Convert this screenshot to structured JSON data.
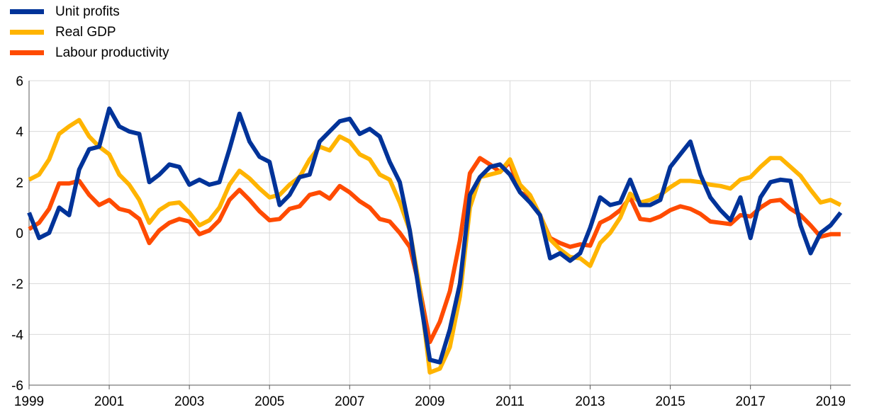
{
  "chart_data": {
    "type": "line",
    "title": "",
    "xlabel": "",
    "ylabel": "",
    "ylim": [
      -6,
      6
    ],
    "yticks": [
      "6",
      "4",
      "2",
      "0",
      "-2",
      "-4",
      "-6"
    ],
    "xticks": [
      "1999",
      "2001",
      "2003",
      "2005",
      "2007",
      "2009",
      "2011",
      "2013",
      "2015",
      "2017",
      "2019"
    ],
    "x_start": 1999.0,
    "x_end": 2019.5,
    "grid": "horizontal",
    "legend_position": "top-left",
    "series": [
      {
        "name": "Unit profits",
        "color": "#003399",
        "points": [
          [
            1999.0,
            0.8
          ],
          [
            1999.25,
            -0.2
          ],
          [
            1999.5,
            0.0
          ],
          [
            1999.75,
            1.0
          ],
          [
            2000.0,
            0.7
          ],
          [
            2000.25,
            2.5
          ],
          [
            2000.5,
            3.3
          ],
          [
            2000.75,
            3.4
          ],
          [
            2001.0,
            4.9
          ],
          [
            2001.25,
            4.2
          ],
          [
            2001.5,
            4.0
          ],
          [
            2001.75,
            3.9
          ],
          [
            2002.0,
            2.0
          ],
          [
            2002.25,
            2.3
          ],
          [
            2002.5,
            2.7
          ],
          [
            2002.75,
            2.6
          ],
          [
            2003.0,
            1.9
          ],
          [
            2003.25,
            2.1
          ],
          [
            2003.5,
            1.9
          ],
          [
            2003.75,
            2.0
          ],
          [
            2004.0,
            3.3
          ],
          [
            2004.25,
            4.7
          ],
          [
            2004.5,
            3.6
          ],
          [
            2004.75,
            3.0
          ],
          [
            2005.0,
            2.8
          ],
          [
            2005.25,
            1.1
          ],
          [
            2005.5,
            1.5
          ],
          [
            2005.75,
            2.2
          ],
          [
            2006.0,
            2.3
          ],
          [
            2006.25,
            3.6
          ],
          [
            2006.5,
            4.0
          ],
          [
            2006.75,
            4.4
          ],
          [
            2007.0,
            4.5
          ],
          [
            2007.25,
            3.9
          ],
          [
            2007.5,
            4.1
          ],
          [
            2007.75,
            3.8
          ],
          [
            2008.0,
            2.8
          ],
          [
            2008.25,
            2.0
          ],
          [
            2008.5,
            0.1
          ],
          [
            2008.75,
            -2.5
          ],
          [
            2009.0,
            -5.0
          ],
          [
            2009.25,
            -5.1
          ],
          [
            2009.5,
            -3.8
          ],
          [
            2009.75,
            -2.0
          ],
          [
            2010.0,
            1.5
          ],
          [
            2010.25,
            2.2
          ],
          [
            2010.5,
            2.6
          ],
          [
            2010.75,
            2.7
          ],
          [
            2011.0,
            2.3
          ],
          [
            2011.25,
            1.6
          ],
          [
            2011.5,
            1.2
          ],
          [
            2011.75,
            0.7
          ],
          [
            2012.0,
            -1.0
          ],
          [
            2012.25,
            -0.8
          ],
          [
            2012.5,
            -1.1
          ],
          [
            2012.75,
            -0.8
          ],
          [
            2013.0,
            0.2
          ],
          [
            2013.25,
            1.4
          ],
          [
            2013.5,
            1.1
          ],
          [
            2013.75,
            1.2
          ],
          [
            2014.0,
            2.1
          ],
          [
            2014.25,
            1.1
          ],
          [
            2014.5,
            1.1
          ],
          [
            2014.75,
            1.3
          ],
          [
            2015.0,
            2.6
          ],
          [
            2015.25,
            3.1
          ],
          [
            2015.5,
            3.6
          ],
          [
            2015.75,
            2.3
          ],
          [
            2016.0,
            1.4
          ],
          [
            2016.25,
            0.9
          ],
          [
            2016.5,
            0.5
          ],
          [
            2016.75,
            1.4
          ],
          [
            2017.0,
            -0.2
          ],
          [
            2017.25,
            1.4
          ],
          [
            2017.5,
            2.0
          ],
          [
            2017.75,
            2.1
          ],
          [
            2018.0,
            2.05
          ],
          [
            2018.25,
            0.3
          ],
          [
            2018.5,
            -0.8
          ],
          [
            2018.75,
            0.0
          ],
          [
            2019.0,
            0.3
          ],
          [
            2019.25,
            0.8
          ]
        ]
      },
      {
        "name": "Real GDP",
        "color": "#FFB400",
        "points": [
          [
            1999.0,
            2.1
          ],
          [
            1999.25,
            2.3
          ],
          [
            1999.5,
            2.9
          ],
          [
            1999.75,
            3.9
          ],
          [
            2000.0,
            4.2
          ],
          [
            2000.25,
            4.45
          ],
          [
            2000.5,
            3.8
          ],
          [
            2000.75,
            3.4
          ],
          [
            2001.0,
            3.1
          ],
          [
            2001.25,
            2.3
          ],
          [
            2001.5,
            1.9
          ],
          [
            2001.75,
            1.3
          ],
          [
            2002.0,
            0.4
          ],
          [
            2002.25,
            0.9
          ],
          [
            2002.5,
            1.15
          ],
          [
            2002.75,
            1.2
          ],
          [
            2003.0,
            0.8
          ],
          [
            2003.25,
            0.3
          ],
          [
            2003.5,
            0.5
          ],
          [
            2003.75,
            1.0
          ],
          [
            2004.0,
            1.9
          ],
          [
            2004.25,
            2.45
          ],
          [
            2004.5,
            2.15
          ],
          [
            2004.75,
            1.75
          ],
          [
            2005.0,
            1.4
          ],
          [
            2005.25,
            1.5
          ],
          [
            2005.5,
            1.9
          ],
          [
            2005.75,
            2.2
          ],
          [
            2006.0,
            2.9
          ],
          [
            2006.25,
            3.4
          ],
          [
            2006.5,
            3.25
          ],
          [
            2006.75,
            3.8
          ],
          [
            2007.0,
            3.6
          ],
          [
            2007.25,
            3.1
          ],
          [
            2007.5,
            2.9
          ],
          [
            2007.75,
            2.3
          ],
          [
            2008.0,
            2.1
          ],
          [
            2008.25,
            1.2
          ],
          [
            2008.5,
            0.1
          ],
          [
            2008.75,
            -2.2
          ],
          [
            2009.0,
            -5.5
          ],
          [
            2009.25,
            -5.35
          ],
          [
            2009.5,
            -4.5
          ],
          [
            2009.75,
            -2.5
          ],
          [
            2010.0,
            1.0
          ],
          [
            2010.25,
            2.2
          ],
          [
            2010.5,
            2.3
          ],
          [
            2010.75,
            2.4
          ],
          [
            2011.0,
            2.9
          ],
          [
            2011.25,
            1.9
          ],
          [
            2011.5,
            1.5
          ],
          [
            2011.75,
            0.7
          ],
          [
            2012.0,
            -0.25
          ],
          [
            2012.25,
            -0.65
          ],
          [
            2012.5,
            -0.95
          ],
          [
            2012.75,
            -1.0
          ],
          [
            2013.0,
            -1.3
          ],
          [
            2013.25,
            -0.4
          ],
          [
            2013.5,
            0.0
          ],
          [
            2013.75,
            0.6
          ],
          [
            2014.0,
            1.55
          ],
          [
            2014.25,
            1.2
          ],
          [
            2014.5,
            1.3
          ],
          [
            2014.75,
            1.5
          ],
          [
            2015.0,
            1.8
          ],
          [
            2015.25,
            2.05
          ],
          [
            2015.5,
            2.05
          ],
          [
            2015.75,
            2.0
          ],
          [
            2016.0,
            1.9
          ],
          [
            2016.25,
            1.85
          ],
          [
            2016.5,
            1.75
          ],
          [
            2016.75,
            2.1
          ],
          [
            2017.0,
            2.2
          ],
          [
            2017.25,
            2.6
          ],
          [
            2017.5,
            2.95
          ],
          [
            2017.75,
            2.95
          ],
          [
            2018.0,
            2.6
          ],
          [
            2018.25,
            2.25
          ],
          [
            2018.5,
            1.7
          ],
          [
            2018.75,
            1.2
          ],
          [
            2019.0,
            1.3
          ],
          [
            2019.25,
            1.1
          ]
        ]
      },
      {
        "name": "Labour productivity",
        "color": "#FF4B00",
        "points": [
          [
            1999.0,
            0.15
          ],
          [
            1999.25,
            0.4
          ],
          [
            1999.5,
            0.95
          ],
          [
            1999.75,
            1.95
          ],
          [
            2000.0,
            1.95
          ],
          [
            2000.25,
            2.05
          ],
          [
            2000.5,
            1.5
          ],
          [
            2000.75,
            1.1
          ],
          [
            2001.0,
            1.3
          ],
          [
            2001.25,
            0.95
          ],
          [
            2001.5,
            0.85
          ],
          [
            2001.75,
            0.55
          ],
          [
            2002.0,
            -0.4
          ],
          [
            2002.25,
            0.1
          ],
          [
            2002.5,
            0.4
          ],
          [
            2002.75,
            0.55
          ],
          [
            2003.0,
            0.45
          ],
          [
            2003.25,
            -0.05
          ],
          [
            2003.5,
            0.1
          ],
          [
            2003.75,
            0.5
          ],
          [
            2004.0,
            1.3
          ],
          [
            2004.25,
            1.7
          ],
          [
            2004.5,
            1.3
          ],
          [
            2004.75,
            0.85
          ],
          [
            2005.0,
            0.5
          ],
          [
            2005.25,
            0.55
          ],
          [
            2005.5,
            0.95
          ],
          [
            2005.75,
            1.05
          ],
          [
            2006.0,
            1.5
          ],
          [
            2006.25,
            1.6
          ],
          [
            2006.5,
            1.35
          ],
          [
            2006.75,
            1.85
          ],
          [
            2007.0,
            1.6
          ],
          [
            2007.25,
            1.25
          ],
          [
            2007.5,
            1.0
          ],
          [
            2007.75,
            0.55
          ],
          [
            2008.0,
            0.45
          ],
          [
            2008.25,
            0.0
          ],
          [
            2008.5,
            -0.55
          ],
          [
            2008.75,
            -2.2
          ],
          [
            2009.0,
            -4.3
          ],
          [
            2009.25,
            -3.5
          ],
          [
            2009.5,
            -2.3
          ],
          [
            2009.75,
            -0.3
          ],
          [
            2010.0,
            2.35
          ],
          [
            2010.25,
            2.95
          ],
          [
            2010.5,
            2.7
          ],
          [
            2010.75,
            2.4
          ],
          [
            2011.0,
            2.8
          ],
          [
            2011.25,
            1.6
          ],
          [
            2011.5,
            1.4
          ],
          [
            2011.75,
            0.7
          ],
          [
            2012.0,
            -0.2
          ],
          [
            2012.25,
            -0.4
          ],
          [
            2012.5,
            -0.55
          ],
          [
            2012.75,
            -0.45
          ],
          [
            2013.0,
            -0.5
          ],
          [
            2013.25,
            0.4
          ],
          [
            2013.5,
            0.6
          ],
          [
            2013.75,
            0.9
          ],
          [
            2014.0,
            1.4
          ],
          [
            2014.25,
            0.55
          ],
          [
            2014.5,
            0.5
          ],
          [
            2014.75,
            0.65
          ],
          [
            2015.0,
            0.9
          ],
          [
            2015.25,
            1.05
          ],
          [
            2015.5,
            0.95
          ],
          [
            2015.75,
            0.75
          ],
          [
            2016.0,
            0.45
          ],
          [
            2016.25,
            0.4
          ],
          [
            2016.5,
            0.35
          ],
          [
            2016.75,
            0.7
          ],
          [
            2017.0,
            0.65
          ],
          [
            2017.25,
            1.0
          ],
          [
            2017.5,
            1.25
          ],
          [
            2017.75,
            1.3
          ],
          [
            2018.0,
            0.95
          ],
          [
            2018.25,
            0.7
          ],
          [
            2018.5,
            0.3
          ],
          [
            2018.75,
            -0.15
          ],
          [
            2019.0,
            -0.05
          ],
          [
            2019.25,
            -0.05
          ]
        ]
      }
    ]
  }
}
